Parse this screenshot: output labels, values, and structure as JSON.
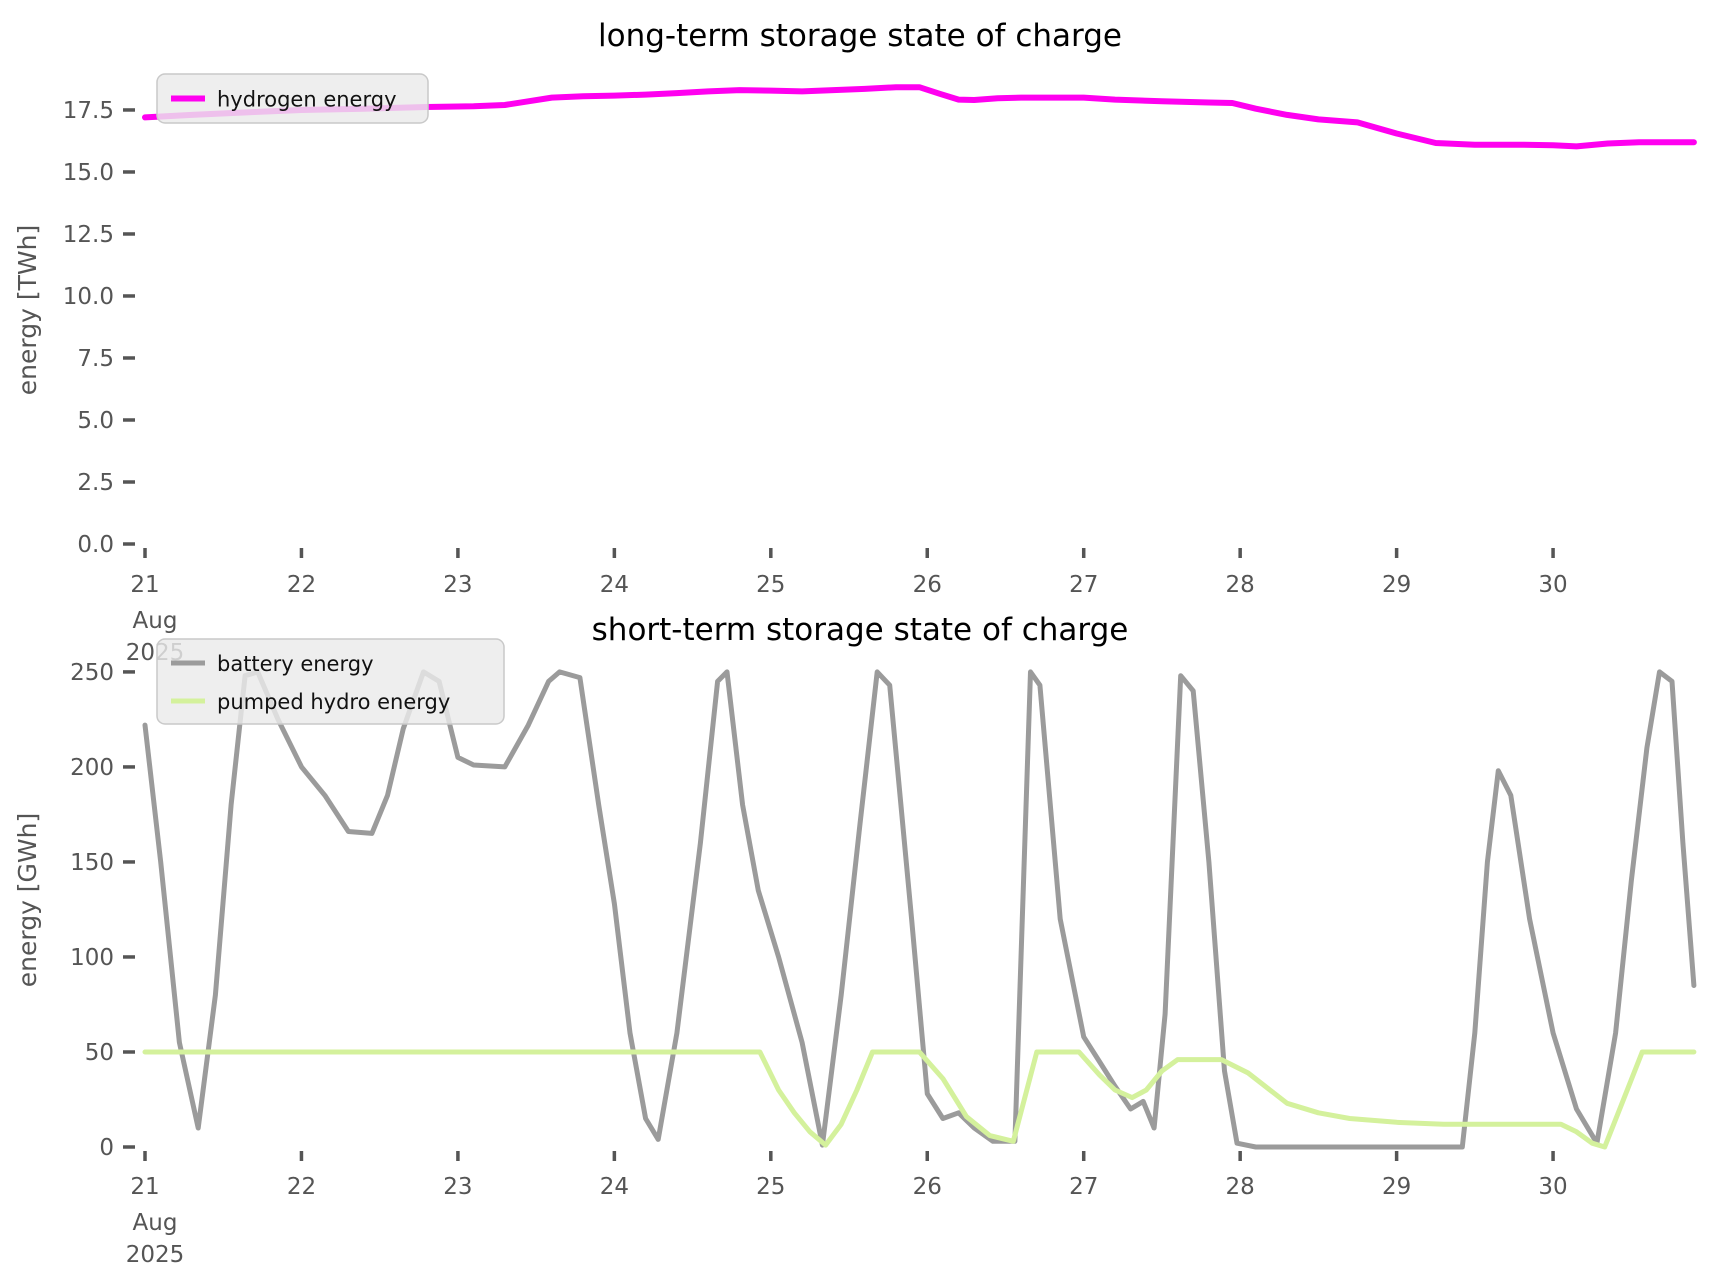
{
  "figure": {
    "background": "#ffffff",
    "tick_color": "#555555",
    "title_color": "#000000",
    "legend_bg": "#eaeaea",
    "legend_border": "#c9c9c9"
  },
  "chart_data": [
    {
      "type": "line",
      "title": "long-term storage state of charge",
      "ylabel": "energy [TWh]",
      "xlabel": "",
      "grid": false,
      "xlim": [
        20.968,
        30.92
      ],
      "ylim": [
        0,
        18.91
      ],
      "x_ticks": [
        {
          "v": 21,
          "label": "21",
          "sublabels": [
            "Aug",
            "2025"
          ]
        },
        {
          "v": 22,
          "label": "22"
        },
        {
          "v": 23,
          "label": "23"
        },
        {
          "v": 24,
          "label": "24"
        },
        {
          "v": 25,
          "label": "25"
        },
        {
          "v": 26,
          "label": "26"
        },
        {
          "v": 27,
          "label": "27"
        },
        {
          "v": 28,
          "label": "28"
        },
        {
          "v": 29,
          "label": "29"
        },
        {
          "v": 30,
          "label": "30"
        }
      ],
      "y_ticks": [
        {
          "v": 0,
          "label": "0.0"
        },
        {
          "v": 2.5,
          "label": "2.5"
        },
        {
          "v": 5,
          "label": "5.0"
        },
        {
          "v": 7.5,
          "label": "7.5"
        },
        {
          "v": 10,
          "label": "10.0"
        },
        {
          "v": 12.5,
          "label": "12.5"
        },
        {
          "v": 15,
          "label": "15.0"
        },
        {
          "v": 17.5,
          "label": "17.5"
        }
      ],
      "legend": {
        "position": "upper left",
        "entries": [
          {
            "label": "hydrogen energy",
            "color": "#ff00f0"
          }
        ]
      },
      "series": [
        {
          "name": "hydrogen energy",
          "color": "#ff00f0",
          "unit": "TWh",
          "x": [
            21.0,
            21.3,
            21.7,
            22.0,
            22.4,
            22.8,
            23.1,
            23.3,
            23.45,
            23.6,
            23.8,
            24.0,
            24.2,
            24.4,
            24.6,
            24.8,
            25.0,
            25.2,
            25.4,
            25.6,
            25.8,
            25.95,
            26.08,
            26.2,
            26.3,
            26.45,
            26.6,
            26.8,
            27.0,
            27.2,
            27.5,
            27.8,
            27.95,
            28.1,
            28.3,
            28.5,
            28.75,
            29.0,
            29.25,
            29.5,
            29.8,
            30.0,
            30.15,
            30.35,
            30.55,
            30.9
          ],
          "y": [
            17.2,
            17.3,
            17.42,
            17.5,
            17.55,
            17.62,
            17.65,
            17.7,
            17.85,
            18.0,
            18.05,
            18.08,
            18.12,
            18.18,
            18.25,
            18.3,
            18.28,
            18.25,
            18.3,
            18.35,
            18.42,
            18.42,
            18.15,
            17.92,
            17.9,
            17.97,
            18.0,
            18.0,
            18.0,
            17.92,
            17.85,
            17.8,
            17.78,
            17.55,
            17.3,
            17.12,
            17.0,
            16.55,
            16.17,
            16.1,
            16.1,
            16.08,
            16.03,
            16.15,
            16.2,
            16.2
          ]
        }
      ]
    },
    {
      "type": "line",
      "title": "short-term storage state of charge",
      "ylabel": "energy [GWh]",
      "xlabel": "",
      "grid": false,
      "xlim": [
        20.968,
        30.92
      ],
      "ylim": [
        0,
        256.8
      ],
      "x_ticks": [
        {
          "v": 21,
          "label": "21",
          "sublabels": [
            "Aug",
            "2025"
          ]
        },
        {
          "v": 22,
          "label": "22"
        },
        {
          "v": 23,
          "label": "23"
        },
        {
          "v": 24,
          "label": "24"
        },
        {
          "v": 25,
          "label": "25"
        },
        {
          "v": 26,
          "label": "26"
        },
        {
          "v": 27,
          "label": "27"
        },
        {
          "v": 28,
          "label": "28"
        },
        {
          "v": 29,
          "label": "29"
        },
        {
          "v": 30,
          "label": "30"
        }
      ],
      "y_ticks": [
        {
          "v": 0,
          "label": "0"
        },
        {
          "v": 50,
          "label": "50"
        },
        {
          "v": 100,
          "label": "100"
        },
        {
          "v": 150,
          "label": "150"
        },
        {
          "v": 200,
          "label": "200"
        },
        {
          "v": 250,
          "label": "250"
        }
      ],
      "legend": {
        "position": "upper left",
        "entries": [
          {
            "label": "battery energy",
            "color": "#9b9b9b"
          },
          {
            "label": "pumped hydro energy",
            "color": "#d4f19c"
          }
        ]
      },
      "series": [
        {
          "name": "battery energy",
          "color": "#9b9b9b",
          "unit": "GWh",
          "x": [
            21.0,
            21.1,
            21.22,
            21.34,
            21.45,
            21.55,
            21.64,
            21.72,
            21.85,
            22.0,
            22.15,
            22.3,
            22.45,
            22.55,
            22.65,
            22.78,
            22.88,
            23.0,
            23.1,
            23.3,
            23.45,
            23.58,
            23.65,
            23.78,
            23.9,
            24.0,
            24.1,
            24.2,
            24.28,
            24.4,
            24.55,
            24.66,
            24.72,
            24.82,
            24.92,
            25.05,
            25.2,
            25.33,
            25.45,
            25.57,
            25.68,
            25.76,
            25.9,
            26.0,
            26.1,
            26.2,
            26.3,
            26.42,
            26.56,
            26.66,
            26.72,
            26.85,
            27.0,
            27.1,
            27.2,
            27.3,
            27.38,
            27.45,
            27.52,
            27.62,
            27.7,
            27.8,
            27.9,
            27.98,
            28.1,
            28.5,
            29.0,
            29.42,
            29.5,
            29.58,
            29.65,
            29.73,
            29.85,
            30.0,
            30.15,
            30.28,
            30.4,
            30.5,
            30.6,
            30.68,
            30.76,
            30.83,
            30.9
          ],
          "y": [
            222,
            150,
            55,
            10,
            80,
            180,
            248,
            250,
            225,
            200,
            185,
            166,
            165,
            185,
            220,
            250,
            245,
            205,
            201,
            200,
            222,
            245,
            250,
            247,
            180,
            128,
            60,
            15,
            4,
            60,
            160,
            245,
            250,
            180,
            135,
            100,
            55,
            1,
            80,
            170,
            250,
            243,
            120,
            28,
            15,
            18,
            10,
            3,
            3,
            250,
            243,
            120,
            58,
            45,
            32,
            20,
            24,
            10,
            70,
            248,
            240,
            150,
            40,
            2,
            0,
            0,
            0,
            0,
            60,
            150,
            198,
            185,
            120,
            60,
            20,
            2,
            60,
            140,
            210,
            250,
            245,
            160,
            85
          ]
        },
        {
          "name": "pumped hydro energy",
          "color": "#d4f19c",
          "unit": "GWh",
          "x": [
            21.0,
            24.93,
            25.05,
            25.15,
            25.25,
            25.35,
            25.45,
            25.55,
            25.65,
            25.95,
            26.1,
            26.25,
            26.4,
            26.55,
            26.62,
            26.7,
            26.97,
            27.1,
            27.2,
            27.31,
            27.4,
            27.5,
            27.6,
            27.88,
            28.05,
            28.3,
            28.5,
            28.7,
            29.0,
            29.3,
            30.05,
            30.15,
            30.25,
            30.33,
            30.45,
            30.57,
            30.9
          ],
          "y": [
            50,
            50,
            30,
            18,
            8,
            1,
            12,
            30,
            50,
            50,
            36,
            16,
            6,
            3,
            25,
            50,
            50,
            38,
            30,
            26,
            30,
            40,
            46,
            46,
            39,
            23,
            18,
            15,
            13,
            12,
            12,
            8,
            2,
            0,
            25,
            50,
            50
          ]
        }
      ]
    }
  ]
}
